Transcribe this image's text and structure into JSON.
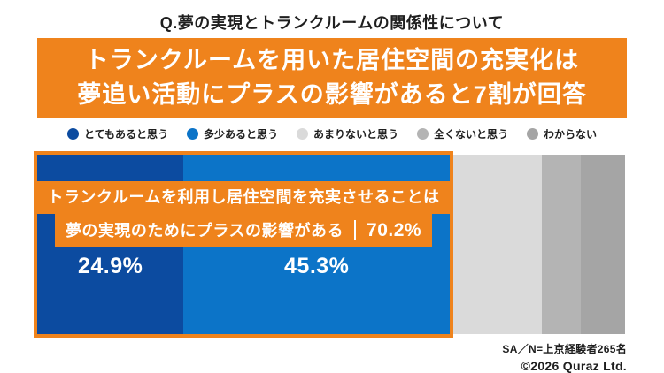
{
  "page": {
    "question_title": "Q.夢の実現とトランクルームの関係性について"
  },
  "banner": {
    "line1": "トランクルームを用いた居住空間の充実化は",
    "line2": "夢追い活動にプラスの影響があると7割が回答",
    "bg": "#EF831C",
    "text_color": "#FFFFFF"
  },
  "legend": {
    "items": [
      {
        "label": "とてもあると思う",
        "color": "#0C4BA0"
      },
      {
        "label": "多少あると思う",
        "color": "#0C74C8"
      },
      {
        "label": "あまりないと思う",
        "color": "#DADADA"
      },
      {
        "label": "全くないと思う",
        "color": "#B4B4B4"
      },
      {
        "label": "わからない",
        "color": "#A5A5A5"
      }
    ]
  },
  "chart": {
    "segments": [
      {
        "name": "とてもあると思う",
        "value": 24.9,
        "width_pct": 24.9,
        "color": "#0C4BA0",
        "value_label": "24.9%"
      },
      {
        "name": "多少あると思う",
        "value": 45.3,
        "width_pct": 45.3,
        "color": "#0C74C8",
        "value_label": "45.3%"
      },
      {
        "name": "あまりないと思う",
        "value": 15.6,
        "width_pct": 15.6,
        "color": "#DADADA",
        "value_label": ""
      },
      {
        "name": "全くないと思う",
        "value": 6.7,
        "width_pct": 6.7,
        "color": "#B4B4B4",
        "value_label": ""
      },
      {
        "name": "わからない",
        "value": 7.5,
        "width_pct": 7.5,
        "color": "#A5A5A5",
        "value_label": ""
      }
    ],
    "callout": {
      "line1": "トランクルームを利用し居住空間を充実させることは",
      "line2_text": "夢の実現のためにプラスの影響がある",
      "line2_value": "70.2%"
    },
    "highlight": {
      "covers": [
        "とてもあると思う",
        "多少あると思う"
      ],
      "total_pct": 70.2,
      "border_color": "#EF831C"
    }
  },
  "chart_data": {
    "type": "bar",
    "subtype": "horizontal-stacked-100pct",
    "title": "Q.夢の実現とトランクルームの関係性について",
    "headline": "トランクルームを用いた居住空間の充実化は夢追い活動にプラスの影響があると7割が回答",
    "categories": [
      "とてもあると思う",
      "多少あると思う",
      "あまりないと思う",
      "全くないと思う",
      "わからない"
    ],
    "values": [
      24.9,
      45.3,
      15.6,
      6.7,
      7.5
    ],
    "value_labels_shown": [
      "24.9%",
      "45.3%"
    ],
    "unlabeled_values_estimated_from_pixels": true,
    "annotation": "トランクルームを利用し居住空間を充実させることは夢の実現のためにプラスの影響がある｜70.2%",
    "annotation_total": 70.2,
    "legend_position": "top",
    "xlim": [
      0,
      100
    ],
    "grid": false,
    "series_colors": [
      "#0C4BA0",
      "#0C74C8",
      "#DADADA",
      "#B4B4B4",
      "#A5A5A5"
    ]
  },
  "footer": {
    "sample_note": "SA／N=上京経験者265名",
    "copyright": "©2026 Quraz Ltd."
  },
  "colors": {
    "accent_orange": "#EF831C",
    "dark_blue": "#0C4BA0",
    "blue": "#0C74C8",
    "text": "#1E1E1E"
  }
}
